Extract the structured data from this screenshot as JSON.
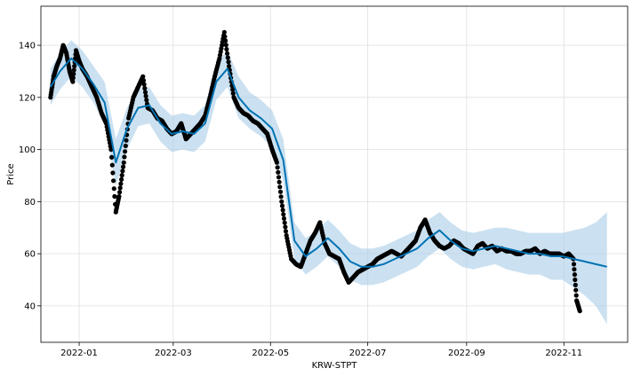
{
  "chart_data": {
    "type": "scatter",
    "xlabel": "KRW-STPT",
    "ylabel": "Price",
    "x_ticks": [
      "2022-01",
      "2022-03",
      "2022-05",
      "2022-07",
      "2022-09",
      "2022-11"
    ],
    "y_ticks": [
      40,
      60,
      80,
      100,
      120,
      140
    ],
    "xlim": [
      "2021-12-08",
      "2022-12-11"
    ],
    "ylim": [
      26,
      155
    ],
    "grid": true,
    "colors": {
      "observed": "#000000",
      "forecast": "#0072B2",
      "interval": "#a8cde8"
    },
    "series": [
      {
        "kind": "observed-points",
        "x": [
          "2021-12-14",
          "2021-12-16",
          "2021-12-18",
          "2021-12-20",
          "2021-12-22",
          "2021-12-24",
          "2021-12-26",
          "2021-12-28",
          "2021-12-30",
          "2022-01-01",
          "2022-01-03",
          "2022-01-06",
          "2022-01-09",
          "2022-01-12",
          "2022-01-15",
          "2022-01-18",
          "2022-01-21",
          "2022-01-24",
          "2022-01-26",
          "2022-01-29",
          "2022-02-01",
          "2022-02-04",
          "2022-02-07",
          "2022-02-10",
          "2022-02-13",
          "2022-02-16",
          "2022-02-19",
          "2022-02-22",
          "2022-02-25",
          "2022-02-28",
          "2022-03-03",
          "2022-03-06",
          "2022-03-09",
          "2022-03-12",
          "2022-03-15",
          "2022-03-18",
          "2022-03-21",
          "2022-03-24",
          "2022-03-27",
          "2022-03-30",
          "2022-04-02",
          "2022-04-05",
          "2022-04-08",
          "2022-04-11",
          "2022-04-14",
          "2022-04-17",
          "2022-04-20",
          "2022-04-23",
          "2022-04-26",
          "2022-04-29",
          "2022-05-02",
          "2022-05-05",
          "2022-05-08",
          "2022-05-11",
          "2022-05-14",
          "2022-05-17",
          "2022-05-20",
          "2022-05-23",
          "2022-05-26",
          "2022-05-29",
          "2022-06-01",
          "2022-06-04",
          "2022-06-07",
          "2022-06-10",
          "2022-06-13",
          "2022-06-16",
          "2022-06-19",
          "2022-06-22",
          "2022-06-25",
          "2022-06-28",
          "2022-07-01",
          "2022-07-04",
          "2022-07-07",
          "2022-07-10",
          "2022-07-13",
          "2022-07-16",
          "2022-07-19",
          "2022-07-22",
          "2022-07-25",
          "2022-07-28",
          "2022-07-31",
          "2022-08-03",
          "2022-08-06",
          "2022-08-09",
          "2022-08-12",
          "2022-08-15",
          "2022-08-18",
          "2022-08-21",
          "2022-08-24",
          "2022-08-27",
          "2022-08-30",
          "2022-09-02",
          "2022-09-05",
          "2022-09-08",
          "2022-09-11",
          "2022-09-14",
          "2022-09-17",
          "2022-09-20",
          "2022-09-23",
          "2022-09-26",
          "2022-09-29",
          "2022-10-02",
          "2022-10-05",
          "2022-10-08",
          "2022-10-11",
          "2022-10-14",
          "2022-10-17",
          "2022-10-20",
          "2022-10-23",
          "2022-10-26",
          "2022-10-29",
          "2022-11-01",
          "2022-11-04",
          "2022-11-07",
          "2022-11-09",
          "2022-11-11"
        ],
        "y": [
          120,
          128,
          132,
          135,
          140,
          137,
          130,
          126,
          138,
          134,
          131,
          128,
          124,
          120,
          114,
          110,
          100,
          76,
          82,
          95,
          112,
          120,
          124,
          128,
          116,
          115,
          112,
          111,
          108,
          106,
          107,
          110,
          104,
          106,
          108,
          110,
          113,
          120,
          128,
          135,
          145,
          132,
          120,
          116,
          114,
          113,
          111,
          110,
          108,
          106,
          100,
          95,
          80,
          67,
          58,
          56,
          55,
          60,
          65,
          68,
          72,
          64,
          60,
          59,
          58,
          53,
          49,
          51,
          53,
          54,
          55,
          56,
          58,
          59,
          60,
          61,
          60,
          59,
          61,
          63,
          65,
          70,
          73,
          68,
          65,
          63,
          62,
          63,
          65,
          64,
          62,
          61,
          60,
          63,
          64,
          62,
          63,
          61,
          62,
          61,
          61,
          60,
          60,
          61,
          61,
          62,
          60,
          61,
          60,
          60,
          60,
          59,
          60,
          58,
          42,
          38
        ]
      },
      {
        "kind": "forecast",
        "x": [
          "2021-12-14",
          "2021-12-20",
          "2021-12-27",
          "2022-01-03",
          "2022-01-10",
          "2022-01-17",
          "2022-01-24",
          "2022-01-31",
          "2022-02-07",
          "2022-02-14",
          "2022-02-21",
          "2022-02-28",
          "2022-03-07",
          "2022-03-14",
          "2022-03-21",
          "2022-03-28",
          "2022-04-04",
          "2022-04-11",
          "2022-04-18",
          "2022-04-25",
          "2022-05-02",
          "2022-05-09",
          "2022-05-16",
          "2022-05-23",
          "2022-05-30",
          "2022-06-06",
          "2022-06-13",
          "2022-06-20",
          "2022-06-27",
          "2022-07-04",
          "2022-07-11",
          "2022-07-18",
          "2022-07-25",
          "2022-08-01",
          "2022-08-08",
          "2022-08-15",
          "2022-08-22",
          "2022-08-29",
          "2022-09-05",
          "2022-09-12",
          "2022-09-19",
          "2022-09-26",
          "2022-10-03",
          "2022-10-10",
          "2022-10-17",
          "2022-10-24",
          "2022-10-31",
          "2022-11-07",
          "2022-11-14",
          "2022-11-21",
          "2022-11-28"
        ],
        "y": [
          124,
          130,
          135,
          131,
          125,
          118,
          95,
          108,
          116,
          117,
          110,
          106,
          107,
          106,
          110,
          126,
          131,
          120,
          115,
          112,
          108,
          96,
          65,
          59,
          62,
          66,
          62,
          57,
          55,
          55,
          56,
          58,
          60,
          62,
          66,
          69,
          65,
          62,
          61,
          62,
          63,
          62,
          61,
          60,
          60,
          59,
          59,
          58,
          57,
          56,
          55
        ],
        "upper": [
          131,
          137,
          142,
          138,
          132,
          126,
          104,
          116,
          123,
          124,
          117,
          113,
          114,
          113,
          117,
          133,
          138,
          128,
          122,
          119,
          115,
          104,
          72,
          66,
          69,
          73,
          69,
          64,
          62,
          62,
          63,
          65,
          67,
          69,
          73,
          76,
          72,
          69,
          68,
          69,
          70,
          70,
          69,
          68,
          68,
          68,
          68,
          69,
          70,
          72,
          76
        ],
        "lower": [
          117,
          123,
          128,
          124,
          118,
          110,
          86,
          100,
          109,
          110,
          103,
          99,
          100,
          99,
          103,
          119,
          124,
          112,
          108,
          105,
          101,
          88,
          58,
          52,
          55,
          59,
          55,
          50,
          48,
          48,
          49,
          51,
          53,
          55,
          59,
          62,
          58,
          55,
          54,
          55,
          56,
          54,
          53,
          52,
          52,
          50,
          50,
          47,
          44,
          40,
          33
        ]
      }
    ]
  }
}
